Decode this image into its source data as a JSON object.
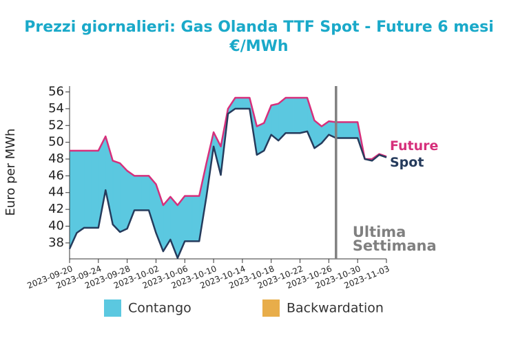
{
  "chart_data": {
    "type": "line",
    "title": "Prezzi giornalieri: Gas Olanda TTF Spot - Future 6 mesi",
    "subtitle": "€/MWh",
    "y_label": "Euro per MWh",
    "x": [
      "2023-09-20",
      "2023-09-21",
      "2023-09-22",
      "2023-09-23",
      "2023-09-24",
      "2023-09-25",
      "2023-09-26",
      "2023-09-27",
      "2023-09-28",
      "2023-09-29",
      "2023-09-30",
      "2023-10-01",
      "2023-10-02",
      "2023-10-03",
      "2023-10-04",
      "2023-10-05",
      "2023-10-06",
      "2023-10-07",
      "2023-10-08",
      "2023-10-09",
      "2023-10-10",
      "2023-10-11",
      "2023-10-12",
      "2023-10-13",
      "2023-10-14",
      "2023-10-15",
      "2023-10-16",
      "2023-10-17",
      "2023-10-18",
      "2023-10-19",
      "2023-10-20",
      "2023-10-21",
      "2023-10-22",
      "2023-10-23",
      "2023-10-24",
      "2023-10-25",
      "2023-10-26",
      "2023-10-27",
      "2023-10-28",
      "2023-10-29",
      "2023-10-30",
      "2023-10-31",
      "2023-11-01",
      "2023-11-02",
      "2023-11-03"
    ],
    "series": [
      {
        "name": "Future",
        "color": "#d62f7b",
        "values": [
          49.0,
          49.0,
          49.0,
          49.0,
          49.0,
          50.7,
          47.8,
          47.5,
          46.6,
          46.0,
          46.0,
          46.0,
          45.0,
          42.5,
          43.5,
          42.5,
          43.6,
          43.6,
          43.6,
          47.5,
          51.2,
          49.5,
          54.0,
          55.3,
          55.3,
          55.3,
          51.9,
          52.3,
          54.4,
          54.6,
          55.3,
          55.3,
          55.3,
          55.3,
          52.6,
          51.9,
          52.5,
          52.4,
          52.4,
          52.4,
          52.4,
          48.0,
          48.0,
          48.6,
          48.3
        ]
      },
      {
        "name": "Spot",
        "color": "#253b5c",
        "values": [
          37.3,
          39.2,
          39.8,
          39.8,
          39.8,
          44.3,
          40.2,
          39.3,
          39.7,
          41.9,
          41.9,
          41.9,
          39.2,
          37.0,
          38.4,
          36.2,
          38.2,
          38.2,
          38.2,
          43.5,
          49.5,
          46.1,
          53.4,
          54.0,
          54.0,
          54.0,
          48.5,
          49.0,
          50.9,
          50.2,
          51.1,
          51.1,
          51.1,
          51.3,
          49.3,
          49.9,
          50.9,
          50.5,
          50.5,
          50.5,
          50.5,
          48.0,
          47.8,
          48.5,
          48.2
        ]
      }
    ],
    "fill_legend": [
      {
        "name": "Contango",
        "color": "#5bc8e0"
      },
      {
        "name": "Backwardation",
        "color": "#e8ad4a"
      }
    ],
    "xlim": [
      "2023-09-20",
      "2023-11-03"
    ],
    "xticks": [
      "2023-09-20",
      "2023-09-24",
      "2023-09-28",
      "2023-10-02",
      "2023-10-06",
      "2023-10-10",
      "2023-10-14",
      "2023-10-18",
      "2023-10-22",
      "2023-10-26",
      "2023-10-30",
      "2023-11-03"
    ],
    "ylim": [
      36.1,
      56.7
    ],
    "yticks": [
      38,
      40,
      42,
      44,
      46,
      48,
      50,
      52,
      54,
      56
    ],
    "vline": {
      "x": "2023-10-27",
      "color": "#808080",
      "lines": [
        "Ultima",
        "Settimana"
      ]
    }
  }
}
